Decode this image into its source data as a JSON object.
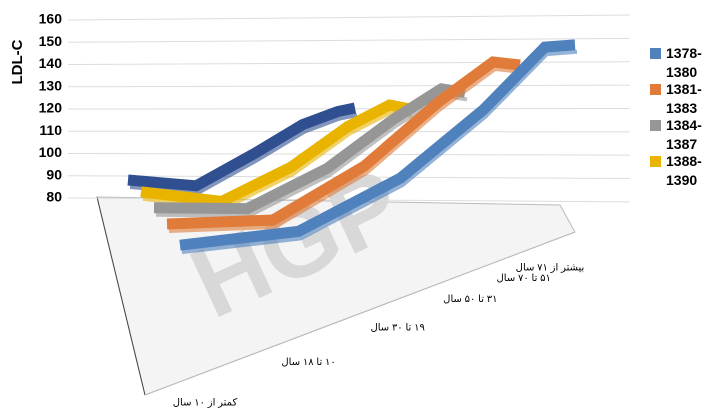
{
  "chart_data": {
    "type": "ribbon3d",
    "y_label": "LDL-C",
    "watermark": "HGP",
    "categories": [
      "کمتر از ۱۰ سال",
      "۱۰ تا ۱۸ سال",
      "۱۹ تا ۳۰ سال",
      "۳۱ تا ۵۰ سال",
      "۵۱ تا ۷۰ سال",
      "بیشتر از ۷۱ سال"
    ],
    "series": [
      {
        "name": "1378-1380",
        "color": "#4f81bd",
        "values": [
          87,
          89,
          108,
          134,
          158,
          158
        ]
      },
      {
        "name": "1381-1383",
        "color": "#e07b39",
        "values": [
          90,
          89,
          110,
          136,
          152,
          150
        ]
      },
      {
        "name": "1384-1387",
        "color": "#969696",
        "values": [
          91,
          89,
          106,
          127,
          140,
          138
        ]
      },
      {
        "name": "1388-1390",
        "color": "#e8b400",
        "values": [
          92,
          87,
          103,
          122,
          132,
          130
        ]
      },
      {
        "color": "#2f4f91",
        "values": [
          91,
          89,
          106,
          121,
          128,
          130
        ]
      }
    ],
    "ylim": [
      80,
      160
    ],
    "yticks": [
      80,
      90,
      100,
      110,
      120,
      130,
      140,
      150,
      160
    ],
    "grid": true
  }
}
